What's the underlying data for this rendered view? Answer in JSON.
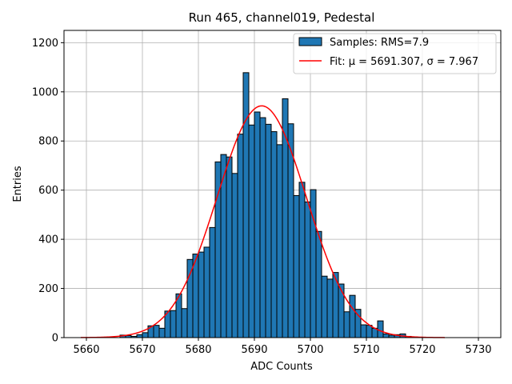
{
  "chart_data": {
    "type": "bar",
    "title": "Run 465, channel019, Pedestal",
    "xlabel": "ADC Counts",
    "ylabel": "Entries",
    "xlim": [
      5656,
      5734
    ],
    "ylim": [
      0,
      1250
    ],
    "xticks": [
      5660,
      5670,
      5680,
      5690,
      5700,
      5710,
      5720,
      5730
    ],
    "yticks": [
      0,
      200,
      400,
      600,
      800,
      1000,
      1200
    ],
    "grid": true,
    "bin_width": 1,
    "bins": [
      [
        5666,
        10
      ],
      [
        5667,
        8
      ],
      [
        5668,
        5
      ],
      [
        5669,
        12
      ],
      [
        5670,
        20
      ],
      [
        5671,
        48
      ],
      [
        5672,
        50
      ],
      [
        5673,
        38
      ],
      [
        5674,
        108
      ],
      [
        5675,
        110
      ],
      [
        5676,
        178
      ],
      [
        5677,
        118
      ],
      [
        5678,
        318
      ],
      [
        5679,
        340
      ],
      [
        5680,
        348
      ],
      [
        5681,
        368
      ],
      [
        5682,
        448
      ],
      [
        5683,
        715
      ],
      [
        5684,
        745
      ],
      [
        5685,
        735
      ],
      [
        5686,
        668
      ],
      [
        5687,
        828
      ],
      [
        5688,
        1078
      ],
      [
        5689,
        865
      ],
      [
        5690,
        918
      ],
      [
        5691,
        895
      ],
      [
        5692,
        868
      ],
      [
        5693,
        838
      ],
      [
        5694,
        785
      ],
      [
        5695,
        972
      ],
      [
        5696,
        870
      ],
      [
        5697,
        578
      ],
      [
        5698,
        632
      ],
      [
        5699,
        552
      ],
      [
        5700,
        602
      ],
      [
        5701,
        432
      ],
      [
        5702,
        250
      ],
      [
        5703,
        238
      ],
      [
        5704,
        265
      ],
      [
        5705,
        218
      ],
      [
        5706,
        105
      ],
      [
        5707,
        172
      ],
      [
        5708,
        115
      ],
      [
        5709,
        52
      ],
      [
        5710,
        50
      ],
      [
        5711,
        38
      ],
      [
        5712,
        68
      ],
      [
        5713,
        15
      ],
      [
        5714,
        10
      ],
      [
        5715,
        12
      ],
      [
        5716,
        15
      ],
      [
        5717,
        5
      ],
      [
        5718,
        3
      ]
    ],
    "bar_color": "#1f77b4",
    "fit": {
      "type": "gaussian",
      "mu": 5691.307,
      "sigma": 7.967,
      "amplitude": 943,
      "x_range": [
        5659,
        5724
      ],
      "color": "#ff0000"
    },
    "legend": {
      "position": "top-right",
      "entries": [
        {
          "label": "Samples: RMS=7.9",
          "kind": "patch",
          "color": "#1f77b4"
        },
        {
          "label": "Fit: μ = 5691.307, σ = 7.967",
          "kind": "line",
          "color": "#ff0000"
        }
      ]
    }
  }
}
